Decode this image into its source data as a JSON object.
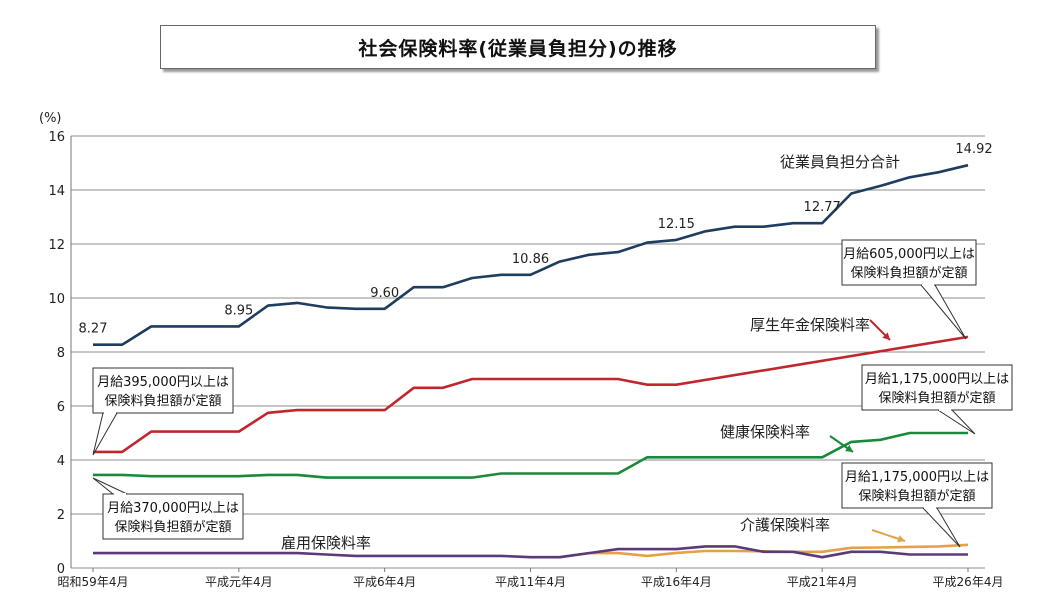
{
  "chart_data": {
    "type": "line",
    "title": "社会保険料率(従業員負担分)の推移",
    "ylabel": "(%)",
    "ylim": [
      0,
      16
    ],
    "yticks": [
      0,
      2,
      4,
      6,
      8,
      10,
      12,
      14,
      16
    ],
    "grid": true,
    "x_tick_labels": [
      "昭和59年4月",
      "平成元年4月",
      "平成6年4月",
      "平成11年4月",
      "平成16年4月",
      "平成21年4月",
      "平成26年4月"
    ],
    "x_tick_years": [
      1984,
      1989,
      1994,
      1999,
      2004,
      2009,
      2014
    ],
    "xlim": [
      1984,
      2015
    ],
    "series": [
      {
        "name": "従業員負担分合計",
        "color": "#1f3d5e",
        "x": [
          1984,
          1985,
          1986,
          1987,
          1988,
          1989,
          1990,
          1991,
          1992,
          1993,
          1994,
          1995,
          1996,
          1997,
          1998,
          1999,
          2000,
          2001,
          2002,
          2003,
          2004,
          2005,
          2006,
          2007,
          2008,
          2009,
          2010,
          2011,
          2012,
          2013,
          2014
        ],
        "values": [
          8.27,
          8.27,
          8.95,
          8.95,
          8.95,
          8.95,
          9.72,
          9.82,
          9.65,
          9.6,
          9.6,
          10.4,
          10.4,
          10.74,
          10.86,
          10.86,
          11.35,
          11.6,
          11.7,
          12.05,
          12.15,
          12.47,
          12.64,
          12.64,
          12.77,
          12.77,
          13.87,
          14.15,
          14.47,
          14.66,
          14.92
        ]
      },
      {
        "name": "厚生年金保険料率",
        "color": "#c0272d",
        "x": [
          1984,
          1985,
          1986,
          1987,
          1988,
          1989,
          1990,
          1991,
          1992,
          1993,
          1994,
          1995,
          1996,
          1997,
          1998,
          1999,
          2000,
          2001,
          2002,
          2003,
          2004,
          2014
        ],
        "values": [
          4.3,
          4.3,
          5.05,
          5.05,
          5.05,
          5.05,
          5.75,
          5.85,
          5.85,
          5.85,
          5.85,
          6.675,
          6.675,
          7.0,
          7.0,
          7.0,
          7.0,
          7.0,
          7.0,
          6.79,
          6.79,
          8.56
        ]
      },
      {
        "name": "健康保険料率",
        "color": "#1a8a3a",
        "x": [
          1984,
          1985,
          1986,
          1987,
          1988,
          1989,
          1990,
          1991,
          1992,
          1993,
          1994,
          1995,
          1996,
          1997,
          1998,
          1999,
          2000,
          2001,
          2002,
          2003,
          2004,
          2005,
          2006,
          2007,
          2008,
          2009,
          2010,
          2011,
          2012,
          2013,
          2014
        ],
        "values": [
          3.45,
          3.45,
          3.4,
          3.4,
          3.4,
          3.4,
          3.45,
          3.45,
          3.35,
          3.35,
          3.35,
          3.35,
          3.35,
          3.35,
          3.5,
          3.5,
          3.5,
          3.5,
          3.5,
          4.1,
          4.1,
          4.1,
          4.1,
          4.1,
          4.1,
          4.1,
          4.67,
          4.75,
          5.0,
          5.0,
          5.0
        ]
      },
      {
        "name": "介護保険料率",
        "color": "#e3a24a",
        "x": [
          2000,
          2001,
          2002,
          2003,
          2004,
          2005,
          2006,
          2007,
          2008,
          2009,
          2010,
          2011,
          2012,
          2013,
          2014
        ],
        "values": [
          0.4,
          0.55,
          0.55,
          0.45,
          0.56,
          0.63,
          0.63,
          0.62,
          0.6,
          0.6,
          0.75,
          0.76,
          0.78,
          0.8,
          0.86
        ]
      },
      {
        "name": "雇用保険料率",
        "color": "#5c3a7a",
        "x": [
          1984,
          1985,
          1986,
          1987,
          1988,
          1989,
          1990,
          1991,
          1992,
          1993,
          1994,
          1995,
          1996,
          1997,
          1998,
          1999,
          2000,
          2001,
          2002,
          2003,
          2004,
          2005,
          2006,
          2007,
          2008,
          2009,
          2010,
          2011,
          2012,
          2013,
          2014
        ],
        "values": [
          0.55,
          0.55,
          0.55,
          0.55,
          0.55,
          0.55,
          0.55,
          0.55,
          0.5,
          0.45,
          0.45,
          0.45,
          0.45,
          0.45,
          0.45,
          0.4,
          0.4,
          0.55,
          0.7,
          0.7,
          0.7,
          0.8,
          0.8,
          0.6,
          0.6,
          0.4,
          0.6,
          0.6,
          0.5,
          0.5,
          0.5
        ]
      }
    ],
    "data_labels": [
      {
        "x": 1984,
        "y": 8.27,
        "text": "8.27"
      },
      {
        "x": 1989,
        "y": 8.95,
        "text": "8.95"
      },
      {
        "x": 1994,
        "y": 9.6,
        "text": "9.60"
      },
      {
        "x": 1999,
        "y": 10.86,
        "text": "10.86"
      },
      {
        "x": 2004,
        "y": 12.15,
        "text": "12.15"
      },
      {
        "x": 2009,
        "y": 12.77,
        "text": "12.77"
      },
      {
        "x": 2014,
        "y": 14.92,
        "text": "14.92"
      }
    ],
    "annotations": [
      {
        "lines": [
          "月給605,000円以上は",
          "保険料負担額が定額"
        ]
      },
      {
        "lines": [
          "月給395,000円以上は",
          "保険料負担額が定額"
        ]
      },
      {
        "lines": [
          "月給1,175,000円以上は",
          "保険料負担額が定額"
        ]
      },
      {
        "lines": [
          "月給370,000円以上は",
          "保険料負担額が定額"
        ]
      },
      {
        "lines": [
          "月給1,175,000円以上は",
          "保険料負担額が定額"
        ]
      }
    ]
  }
}
